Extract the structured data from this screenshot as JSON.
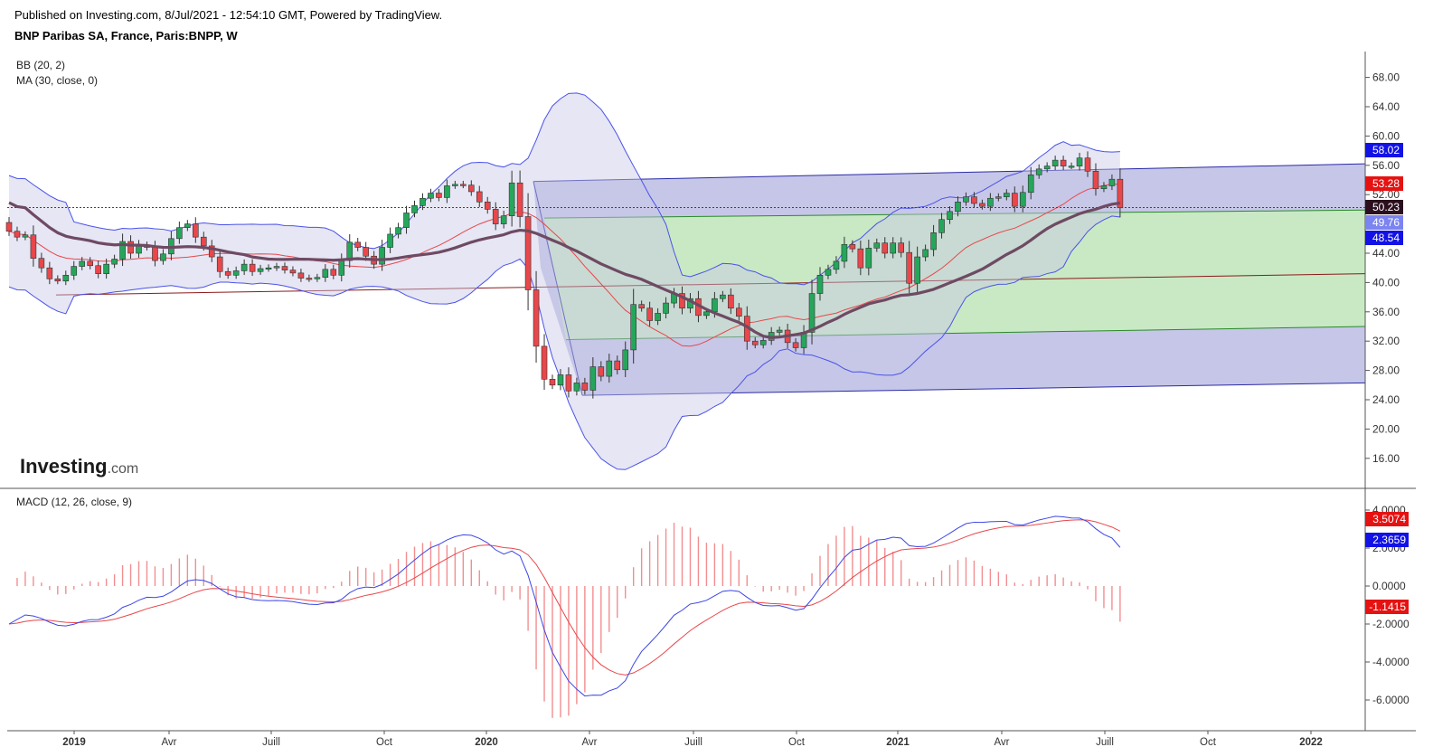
{
  "header": {
    "published": "Published on Investing.com, 8/Jul/2021 - 12:54:10 GMT, Powered by TradingView.",
    "symbol": "BNP Paribas SA, France, Paris:BNPP, W"
  },
  "logo": {
    "main": "Investing",
    "sub": ".com"
  },
  "colors": {
    "up": "#26a65b",
    "down": "#e8474b",
    "bb_fill": "#c8c8e6",
    "bb_line": "#4b53e8",
    "ma30": "#6e4a63",
    "ma20": "#e8474b",
    "channel_blue": "#b3b3e0",
    "channel_green": "#c8ecc0",
    "macd_line": "#3c46e6",
    "signal_line": "#e8474b",
    "hist": "#f28e90",
    "tag_blue": "#1212e6",
    "tag_red": "#e61212"
  },
  "chart_data": [
    {
      "type": "candlestick",
      "title": "BNP Paribas SA, France, Paris:BNPP, W",
      "indicators": [
        "BB (20, 2)",
        "MA (30, close, 0)"
      ],
      "x_tick_labels": [
        "2019",
        "Avr",
        "Juill",
        "Oct",
        "2020",
        "Avr",
        "Juill",
        "Oct",
        "2021",
        "Avr",
        "Juill",
        "Oct",
        "2022"
      ],
      "y_ticks": [
        "68.00",
        "64.00",
        "60.00",
        "56.00",
        "52.00",
        "48.00",
        "44.00",
        "40.00",
        "36.00",
        "32.00",
        "28.00",
        "24.00",
        "20.00",
        "16.00"
      ],
      "ylim": [
        12.6,
        70.8
      ],
      "price_tags": [
        {
          "label": "58.02",
          "value": 58.02,
          "color": "blue"
        },
        {
          "label": "53.28",
          "value": 53.28,
          "color": "red"
        },
        {
          "label": "50.23",
          "value": 50.23,
          "color": "dark"
        },
        {
          "label": "49.76",
          "value": 49.76,
          "color": "blue"
        },
        {
          "label": "48.54",
          "value": 48.54,
          "color": "blue"
        }
      ],
      "last_close": 50.23,
      "close_series_weekly": [
        47.0,
        46.2,
        46.5,
        43.3,
        42.0,
        40.5,
        40.2,
        41.0,
        42.2,
        42.9,
        42.3,
        41.2,
        42.5,
        43.2,
        45.6,
        44.0,
        45.1,
        44.8,
        43.0,
        43.9,
        46.0,
        47.5,
        48.0,
        46.2,
        45.0,
        43.5,
        41.5,
        41.0,
        41.6,
        42.5,
        41.5,
        41.9,
        42.0,
        42.2,
        41.7,
        41.3,
        40.6,
        40.5,
        40.7,
        41.8,
        41.0,
        43.0,
        45.5,
        44.8,
        43.6,
        42.5,
        44.8,
        46.6,
        47.5,
        49.5,
        50.5,
        51.5,
        52.2,
        51.6,
        53.2,
        53.4,
        53.3,
        52.4,
        51.0,
        50.0,
        48.0,
        49.1,
        53.6,
        49.0,
        39.0,
        31.3,
        26.8,
        26.0,
        27.4,
        25.2,
        26.3,
        25.3,
        28.5,
        27.2,
        29.3,
        28.1,
        30.8,
        37.0,
        36.5,
        34.8,
        35.8,
        37.2,
        38.5,
        36.5,
        37.8,
        35.5,
        36.0,
        37.8,
        38.3,
        36.5,
        35.4,
        32.0,
        31.5,
        32.1,
        33.2,
        33.5,
        31.8,
        31.1,
        33.2,
        38.5,
        41.0,
        41.8,
        42.9,
        45.2,
        44.6,
        42.0,
        44.7,
        45.4,
        44.0,
        45.4,
        44.1,
        39.9,
        43.5,
        44.5,
        46.8,
        48.6,
        49.7,
        51.0,
        51.7,
        50.8,
        50.4,
        51.5,
        51.7,
        52.2,
        50.4,
        52.3,
        54.7,
        55.5,
        55.9,
        56.7,
        55.9,
        55.9,
        57.0,
        55.2,
        52.8,
        53.2,
        54.1,
        50.2
      ],
      "series": [
        {
          "name": "BB (20, 2)",
          "kind": "bands"
        },
        {
          "name": "MA (30, close, 0)",
          "kind": "line"
        }
      ]
    },
    {
      "type": "line",
      "title": "MACD (12, 26, close, 9)",
      "y_ticks": [
        "4.0000",
        "2.0000",
        "0.0000",
        "-2.0000",
        "-4.0000",
        "-6.0000"
      ],
      "ylim": [
        -7.3,
        5.3
      ],
      "value_tags": [
        {
          "label": "3.5074",
          "value": 3.5074,
          "color": "red"
        },
        {
          "label": "2.3659",
          "value": 2.3659,
          "color": "blue"
        },
        {
          "label": "-1.1415",
          "value": -1.1415,
          "color": "red"
        }
      ]
    }
  ]
}
